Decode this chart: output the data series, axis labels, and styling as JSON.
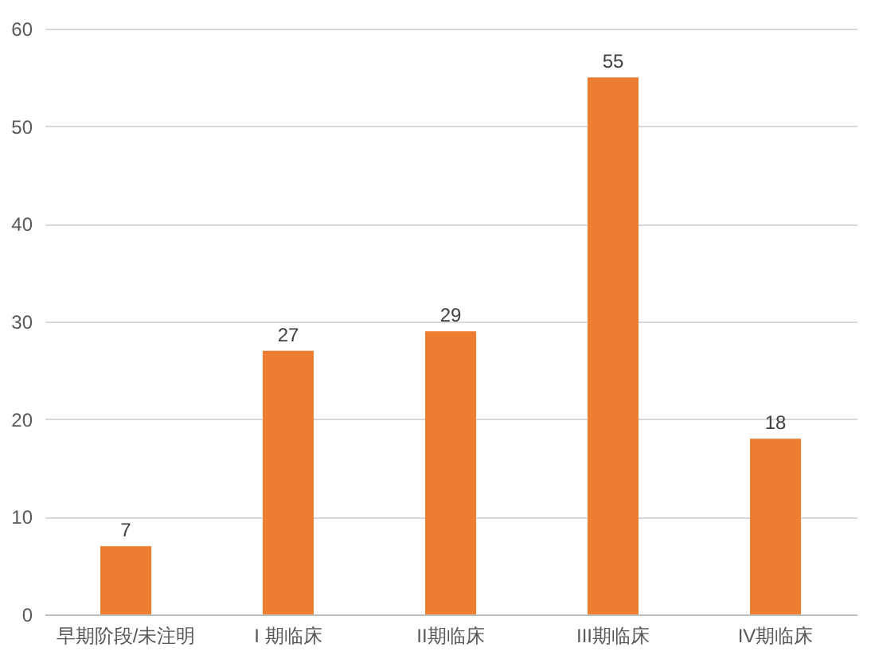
{
  "chart_data": {
    "type": "bar",
    "categories": [
      "早期阶段/未注明",
      "I 期临床",
      "II期临床",
      "III期临床",
      "IV期临床"
    ],
    "values": [
      7,
      27,
      29,
      55,
      18
    ],
    "color": "#ed7d31",
    "ylim": [
      0,
      60
    ],
    "yticks": [
      0,
      10,
      20,
      30,
      40,
      50,
      60
    ],
    "grid": "y",
    "data_labels": true
  }
}
